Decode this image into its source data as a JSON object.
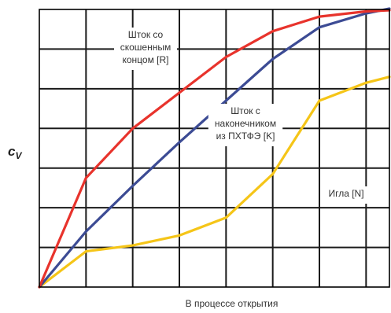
{
  "chart_data": {
    "type": "line",
    "xlabel": "В процессе открытия",
    "ylabel": "c",
    "ylabel_subscript": "V",
    "grid": true,
    "x_ticks_shown": false,
    "y_ticks_shown": false,
    "xlim": [
      0,
      7.5
    ],
    "ylim": [
      0,
      7.0
    ],
    "legend": "none",
    "series": [
      {
        "key": "r",
        "color": "#e8332c",
        "points": [
          [
            0,
            0
          ],
          [
            1,
            2.75
          ],
          [
            2,
            4.0
          ],
          [
            3,
            4.9
          ],
          [
            4,
            5.8
          ],
          [
            5,
            6.45
          ],
          [
            6,
            6.82
          ],
          [
            7,
            6.95
          ],
          [
            7.5,
            6.98
          ]
        ]
      },
      {
        "key": "k",
        "color": "#3c4b94",
        "points": [
          [
            0,
            0
          ],
          [
            1,
            1.4
          ],
          [
            2,
            2.55
          ],
          [
            3,
            3.65
          ],
          [
            4,
            4.7
          ],
          [
            5,
            5.75
          ],
          [
            6,
            6.55
          ],
          [
            7,
            6.9
          ],
          [
            7.5,
            7.02
          ]
        ]
      },
      {
        "key": "n",
        "color": "#f5c518",
        "points": [
          [
            0,
            0
          ],
          [
            1,
            0.9
          ],
          [
            2,
            1.05
          ],
          [
            3,
            1.3
          ],
          [
            4,
            1.75
          ],
          [
            5,
            2.85
          ],
          [
            6,
            4.7
          ],
          [
            7,
            5.15
          ],
          [
            7.5,
            5.3
          ]
        ]
      }
    ],
    "annotations": [
      {
        "key": "r",
        "lines": [
          "Шток со",
          "скошенным",
          "концом [R]"
        ]
      },
      {
        "key": "k",
        "lines": [
          "Шток с",
          "наконечником",
          "из ПХТФЭ [K]"
        ]
      },
      {
        "key": "n",
        "lines": [
          "Игла [N]"
        ]
      }
    ]
  }
}
